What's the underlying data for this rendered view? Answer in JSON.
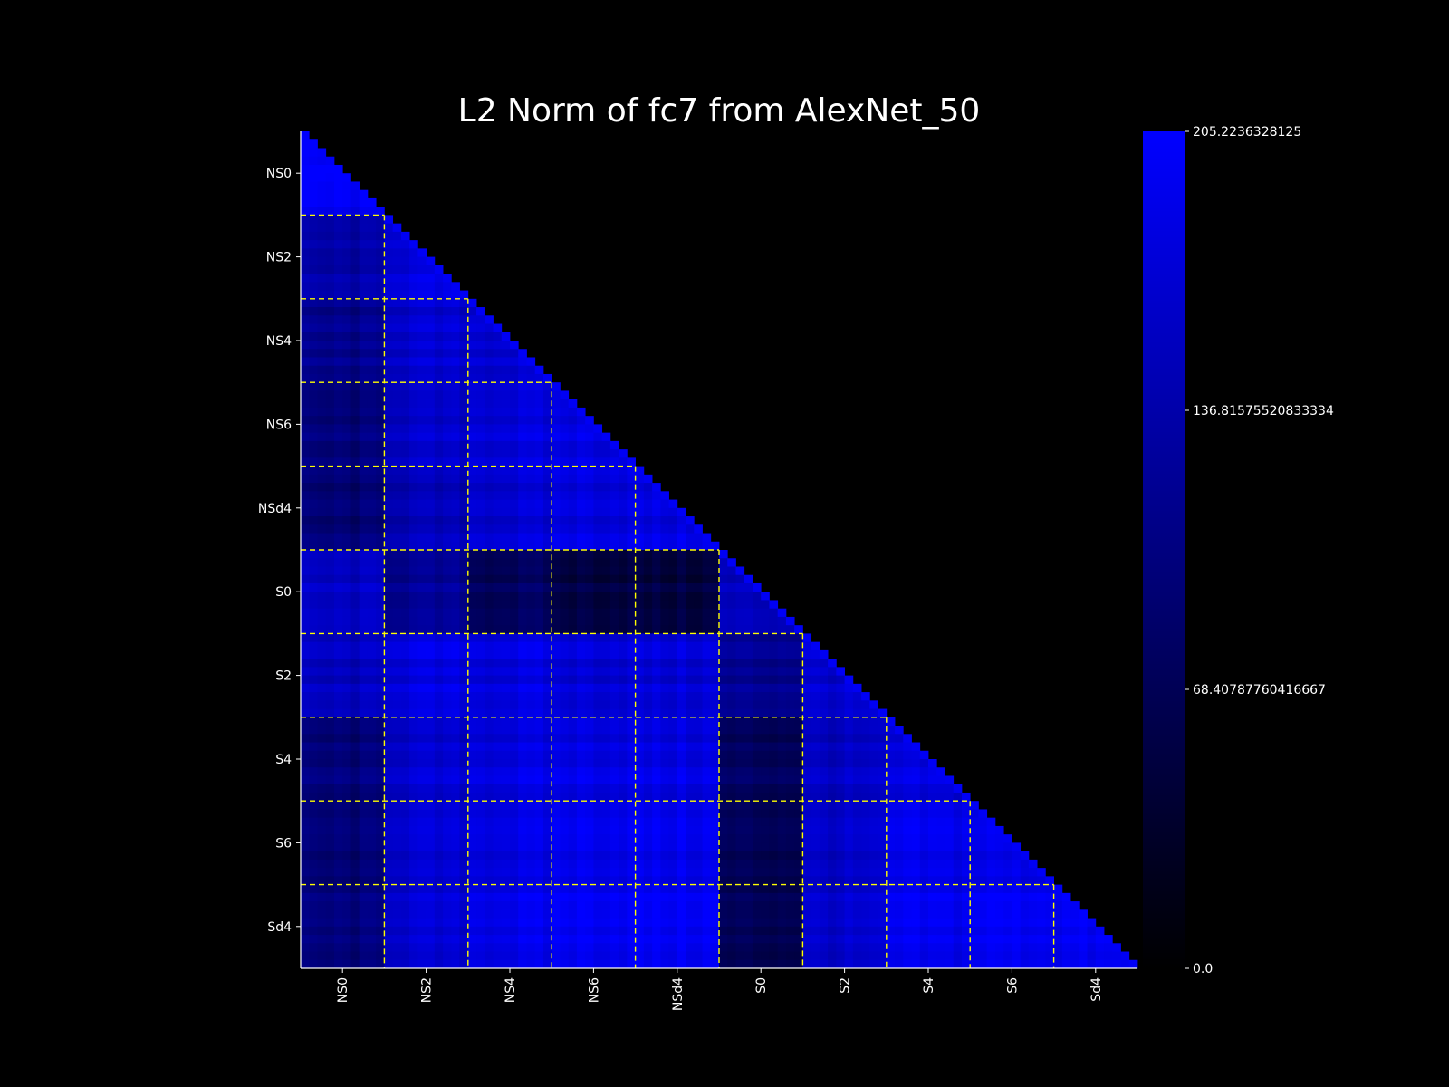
{
  "chart_data": {
    "type": "heatmap",
    "title": "L2 Norm of fc7 from AlexNet_50",
    "subtitle": "",
    "xlabel": "",
    "ylabel": "",
    "layout": "lower-triangle",
    "group_labels": [
      "NS0",
      "NS2",
      "NS4",
      "NS6",
      "NSd4",
      "S0",
      "S2",
      "S4",
      "S6",
      "Sd4"
    ],
    "n_cells": 100,
    "cells_per_group": 10,
    "group_boundaries": true,
    "group_boundary_style": "dashed yellow",
    "colorbar": {
      "min": 0.0,
      "max": 205.2236328125,
      "tick_values": [
        0.0,
        68.40787760416667,
        136.81575520833334,
        205.2236328125
      ],
      "tick_labels": [
        "0.0",
        "68.40787760416667",
        "136.81575520833334",
        "205.2236328125"
      ],
      "colors": [
        "#000000",
        "#0000ff"
      ],
      "placement": "right"
    },
    "block_means": [
      [
        198
      ],
      [
        130,
        175
      ],
      [
        110,
        165,
        170
      ],
      [
        95,
        160,
        175,
        182
      ],
      [
        90,
        145,
        168,
        180,
        178
      ],
      [
        155,
        118,
        75,
        55,
        50,
        150
      ],
      [
        150,
        178,
        178,
        172,
        170,
        115,
        165
      ],
      [
        95,
        165,
        180,
        185,
        182,
        75,
        155,
        175
      ],
      [
        92,
        168,
        182,
        192,
        190,
        70,
        160,
        188,
        188
      ],
      [
        95,
        165,
        185,
        195,
        195,
        65,
        160,
        188,
        195,
        192
      ]
    ],
    "cell_variation_note": "",
    "grid": false,
    "legend": "none"
  }
}
